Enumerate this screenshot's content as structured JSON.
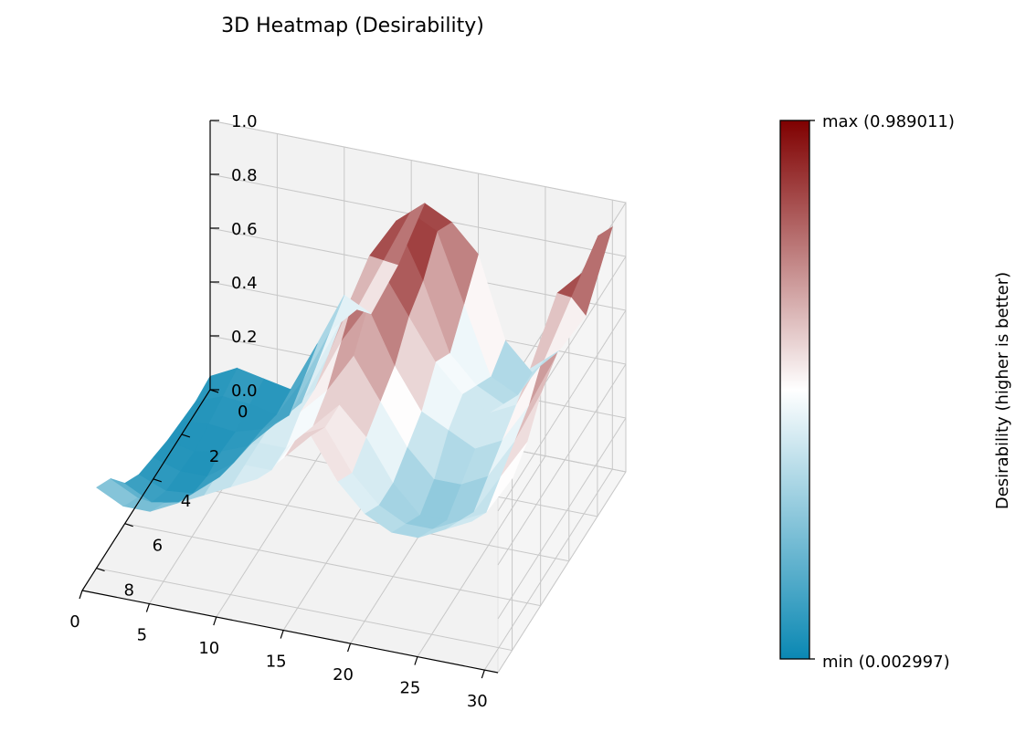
{
  "chart_data": {
    "type": "heatmap",
    "title": "3D Heatmap (Desirability)",
    "x_ticks": [
      "30",
      "25",
      "20",
      "15",
      "10",
      "5",
      "0"
    ],
    "y_ticks": [
      "0",
      "2",
      "4",
      "6",
      "8"
    ],
    "z_ticks": [
      "0.0",
      "0.2",
      "0.4",
      "0.6",
      "0.8",
      "1.0"
    ],
    "xlim": [
      0,
      31
    ],
    "ylim": [
      0,
      9
    ],
    "zlim": [
      0,
      1
    ],
    "grid": true,
    "colorbar": {
      "label": "Desirability (higher is better)",
      "max_label": "max (0.989011)",
      "min_label": "min (0.002997)",
      "min": 0.002997,
      "max": 0.989011,
      "colors": [
        "#0a88b3",
        "#ffffff",
        "#7f0000"
      ]
    },
    "x_values": [
      0,
      2,
      4,
      6,
      8,
      10,
      12,
      14,
      16,
      18,
      20,
      22,
      24,
      26,
      28,
      30
    ],
    "y_values": [
      0,
      1,
      2,
      3,
      4,
      5,
      6,
      7,
      8
    ],
    "z": [
      [
        0.05,
        0.1,
        0.08,
        0.06,
        0.25,
        0.45,
        0.4,
        0.6,
        0.85,
        0.8,
        0.7,
        0.4,
        0.3,
        0.4,
        0.55,
        0.9
      ],
      [
        0.04,
        0.08,
        0.07,
        0.05,
        0.2,
        0.4,
        0.5,
        0.7,
        0.9,
        0.85,
        0.6,
        0.35,
        0.3,
        0.45,
        0.7,
        0.95
      ],
      [
        0.05,
        0.06,
        0.05,
        0.08,
        0.15,
        0.35,
        0.55,
        0.8,
        0.95,
        0.75,
        0.5,
        0.4,
        0.35,
        0.5,
        0.8,
        0.9
      ],
      [
        0.06,
        0.04,
        0.06,
        0.1,
        0.2,
        0.3,
        0.5,
        0.75,
        0.85,
        0.7,
        0.55,
        0.45,
        0.4,
        0.45,
        0.65,
        0.8
      ],
      [
        0.08,
        0.05,
        0.05,
        0.12,
        0.25,
        0.35,
        0.45,
        0.65,
        0.8,
        0.6,
        0.45,
        0.4,
        0.35,
        0.4,
        0.55,
        0.75
      ],
      [
        0.1,
        0.06,
        0.07,
        0.15,
        0.3,
        0.4,
        0.45,
        0.55,
        0.7,
        0.55,
        0.4,
        0.3,
        0.3,
        0.35,
        0.5,
        0.7
      ],
      [
        0.15,
        0.1,
        0.12,
        0.2,
        0.35,
        0.4,
        0.4,
        0.5,
        0.6,
        0.5,
        0.35,
        0.25,
        0.25,
        0.3,
        0.45,
        0.6
      ],
      [
        0.25,
        0.2,
        0.2,
        0.25,
        0.35,
        0.4,
        0.4,
        0.55,
        0.6,
        0.45,
        0.35,
        0.3,
        0.3,
        0.35,
        0.4,
        0.55
      ],
      [
        0.3,
        0.25,
        0.25,
        0.3,
        0.35,
        0.4,
        0.45,
        0.55,
        0.65,
        0.5,
        0.4,
        0.35,
        0.35,
        0.4,
        0.45,
        0.6
      ]
    ]
  }
}
